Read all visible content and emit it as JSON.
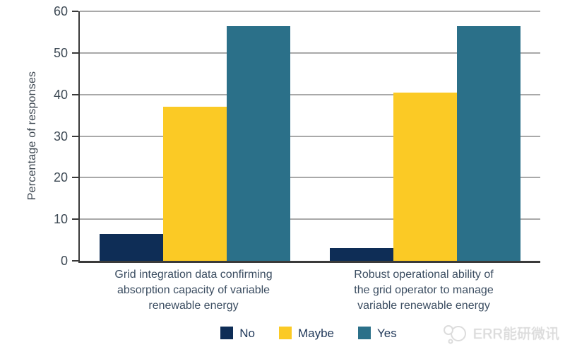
{
  "chart_data": {
    "type": "bar",
    "title": "",
    "ylabel": "Percentage of responses",
    "xlabel": "",
    "ylim": [
      0,
      60
    ],
    "yticks": [
      0,
      10,
      20,
      30,
      40,
      50,
      60
    ],
    "grid": true,
    "legend_position": "bottom-center",
    "categories": [
      "Grid integration data confirming\nabsorption capacity of variable\nrenewable energy",
      "Robust operational ability of\nthe grid operator to manage\nvariable renewable energy"
    ],
    "series": [
      {
        "name": "No",
        "color": "#0e2d56",
        "values": [
          6.5,
          3
        ]
      },
      {
        "name": "Maybe",
        "color": "#fbca25",
        "values": [
          37,
          40.5
        ]
      },
      {
        "name": "Yes",
        "color": "#2b7089",
        "values": [
          56.5,
          56.5
        ]
      }
    ]
  },
  "watermark": {
    "text": "ERR能研微讯",
    "logo": "cloud-speech-bubble-icon",
    "color": "#dcdcdc"
  }
}
